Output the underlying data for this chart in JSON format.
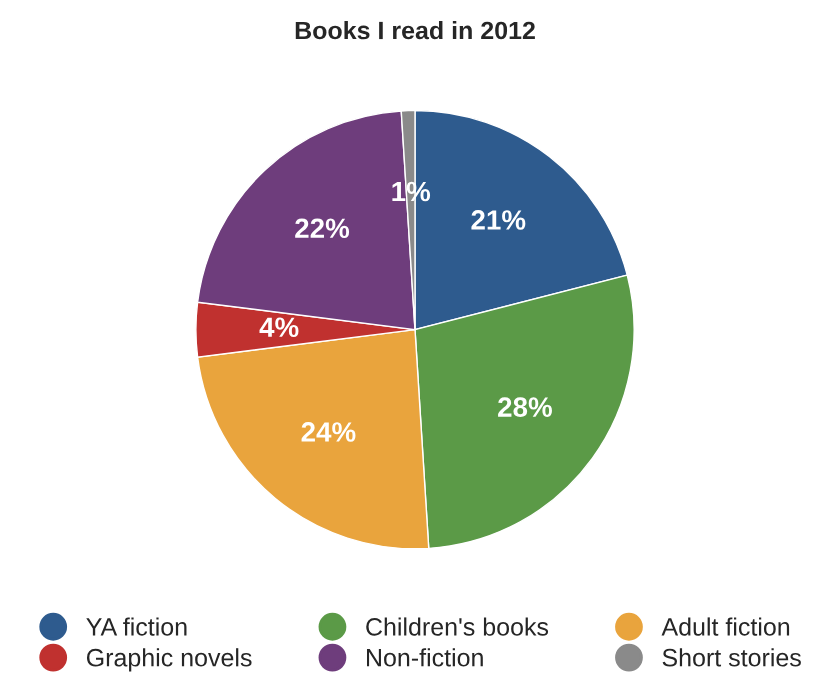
{
  "chart_data": {
    "type": "pie",
    "title": "Books I read in 2012",
    "categories": [
      "YA fiction",
      "Children's books",
      "Adult fiction",
      "Graphic novels",
      "Non-fiction",
      "Short stories"
    ],
    "values": [
      21,
      28,
      24,
      4,
      22,
      1
    ],
    "value_labels": [
      "21%",
      "28%",
      "24%",
      "4%",
      "22%",
      "1%"
    ],
    "colors": [
      "#2e5b8e",
      "#5b9a47",
      "#e9a43d",
      "#c0312f",
      "#6e3d7c",
      "#8a8a8a"
    ],
    "legend": "bottom"
  }
}
